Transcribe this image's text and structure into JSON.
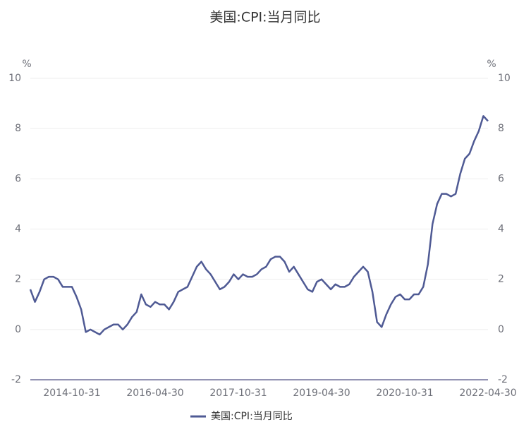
{
  "chart_data": {
    "type": "line",
    "title": "美国:CPI:当月同比",
    "y_unit": "%",
    "y2_unit": "%",
    "categories": [
      null,
      null,
      null,
      null,
      null,
      null,
      null,
      null,
      null,
      "2014-10-31",
      null,
      null,
      null,
      null,
      null,
      null,
      null,
      null,
      null,
      null,
      null,
      null,
      null,
      null,
      null,
      null,
      null,
      "2016-04-30",
      null,
      null,
      null,
      null,
      null,
      null,
      null,
      null,
      null,
      null,
      null,
      null,
      null,
      null,
      null,
      null,
      null,
      "2017-10-31",
      null,
      null,
      null,
      null,
      null,
      null,
      null,
      null,
      null,
      null,
      null,
      null,
      null,
      null,
      null,
      null,
      null,
      "2019-04-30",
      null,
      null,
      null,
      null,
      null,
      null,
      null,
      null,
      null,
      null,
      null,
      null,
      null,
      null,
      null,
      null,
      null,
      "2020-10-31",
      null,
      null,
      null,
      null,
      null,
      null,
      null,
      null,
      null,
      null,
      null,
      null,
      null,
      null,
      null,
      null,
      null,
      "2022-04-30"
    ],
    "series": [
      {
        "name": "美国:CPI:当月同比",
        "color": "#4f5a94",
        "values": [
          1.6,
          1.1,
          1.5,
          2.0,
          2.1,
          2.1,
          2.0,
          1.7,
          1.7,
          1.7,
          1.3,
          0.8,
          -0.1,
          0.0,
          -0.1,
          -0.2,
          0.0,
          0.1,
          0.2,
          0.2,
          0.0,
          0.2,
          0.5,
          0.7,
          1.4,
          1.0,
          0.9,
          1.1,
          1.0,
          1.0,
          0.8,
          1.1,
          1.5,
          1.6,
          1.7,
          2.1,
          2.5,
          2.7,
          2.4,
          2.2,
          1.9,
          1.6,
          1.7,
          1.9,
          2.2,
          2.0,
          2.2,
          2.1,
          2.1,
          2.2,
          2.4,
          2.5,
          2.8,
          2.9,
          2.9,
          2.7,
          2.3,
          2.5,
          2.2,
          1.9,
          1.6,
          1.5,
          1.9,
          2.0,
          1.8,
          1.6,
          1.8,
          1.7,
          1.7,
          1.8,
          2.1,
          2.3,
          2.5,
          2.3,
          1.5,
          0.3,
          0.1,
          0.6,
          1.0,
          1.3,
          1.4,
          1.2,
          1.2,
          1.4,
          1.4,
          1.7,
          2.6,
          4.2,
          5.0,
          5.4,
          5.4,
          5.3,
          5.4,
          6.2,
          6.8,
          7.0,
          7.5,
          7.9,
          8.5,
          8.3
        ]
      }
    ],
    "ylim": [
      -2,
      10
    ],
    "yticks": [
      -2,
      0,
      2,
      4,
      6,
      8,
      10
    ],
    "y2lim": [
      -2,
      10
    ],
    "y2ticks": [
      -2,
      0,
      2,
      4,
      6,
      8,
      10
    ],
    "grid": true
  }
}
